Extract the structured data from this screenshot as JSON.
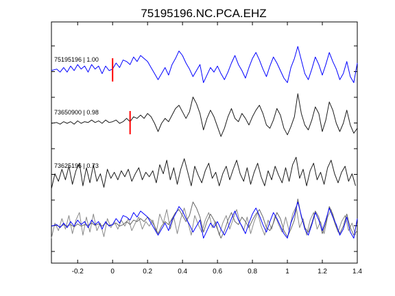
{
  "chart_data": {
    "type": "line",
    "title": "75195196.NC.PCA.EHZ",
    "xlabel": "",
    "ylabel": "",
    "xlim": [
      -0.35,
      1.4
    ],
    "x_ticks": [
      -0.2,
      0,
      0.2,
      0.4,
      0.6,
      0.8,
      1,
      1.2,
      1.4
    ],
    "x_tick_labels": [
      "-0.2",
      "0",
      "0.2",
      "0.4",
      "0.6",
      "0.8",
      "1",
      "1.2",
      "1.4"
    ],
    "y_tick_count": 10,
    "grid": false,
    "traces": [
      {
        "label": "75195196 | 1.00",
        "color": "#0000ff",
        "pick_time": 0.0,
        "pick_color": "#ff0000",
        "x": [
          -0.35,
          -0.32,
          -0.3,
          -0.28,
          -0.26,
          -0.24,
          -0.22,
          -0.2,
          -0.18,
          -0.16,
          -0.14,
          -0.12,
          -0.1,
          -0.08,
          -0.06,
          -0.04,
          -0.02,
          0.0,
          0.02,
          0.04,
          0.06,
          0.08,
          0.1,
          0.12,
          0.14,
          0.16,
          0.18,
          0.2,
          0.22,
          0.24,
          0.26,
          0.28,
          0.3,
          0.32,
          0.34,
          0.36,
          0.38,
          0.4,
          0.42,
          0.44,
          0.46,
          0.48,
          0.5,
          0.52,
          0.54,
          0.56,
          0.58,
          0.6,
          0.62,
          0.64,
          0.66,
          0.68,
          0.7,
          0.72,
          0.74,
          0.76,
          0.78,
          0.8,
          0.82,
          0.84,
          0.86,
          0.88,
          0.9,
          0.92,
          0.94,
          0.96,
          0.98,
          1.0,
          1.02,
          1.04,
          1.06,
          1.08,
          1.1,
          1.12,
          1.14,
          1.16,
          1.18,
          1.2,
          1.22,
          1.24,
          1.26,
          1.28,
          1.3,
          1.32,
          1.34,
          1.36,
          1.38,
          1.4
        ],
        "y": [
          0.0,
          0.1,
          -0.1,
          0.2,
          -0.1,
          0.3,
          0.0,
          0.4,
          0.1,
          0.3,
          -0.1,
          0.4,
          0.1,
          0.3,
          -0.2,
          0.3,
          0.0,
          0.1,
          0.5,
          0.2,
          0.7,
          0.6,
          0.4,
          0.9,
          0.6,
          1.0,
          0.8,
          0.6,
          0.2,
          -0.2,
          -0.6,
          -0.2,
          0.2,
          -0.3,
          0.4,
          0.8,
          1.3,
          1.0,
          0.5,
          0.1,
          -0.4,
          0.0,
          0.4,
          -0.8,
          -0.3,
          0.2,
          -0.1,
          0.3,
          -0.2,
          -0.6,
          -0.1,
          0.5,
          1.0,
          0.4,
          0.0,
          -0.5,
          0.2,
          0.8,
          1.2,
          0.7,
          0.1,
          -0.4,
          0.3,
          0.9,
          0.5,
          0.0,
          -0.5,
          -0.8,
          0.2,
          0.8,
          1.6,
          0.7,
          -0.2,
          -0.6,
          0.1,
          0.9,
          0.4,
          -0.3,
          0.4,
          1.2,
          0.6,
          0.1,
          -0.6,
          -0.2,
          0.6,
          -0.4,
          -0.8,
          0.5
        ]
      },
      {
        "label": "73650900 | 0.98",
        "color": "#1a1a1a",
        "pick_time": 0.1,
        "pick_color": "#ff0000",
        "x": [
          -0.35,
          -0.32,
          -0.3,
          -0.28,
          -0.26,
          -0.24,
          -0.22,
          -0.2,
          -0.18,
          -0.16,
          -0.14,
          -0.12,
          -0.1,
          -0.08,
          -0.06,
          -0.04,
          -0.02,
          0.0,
          0.02,
          0.04,
          0.06,
          0.08,
          0.1,
          0.12,
          0.14,
          0.16,
          0.18,
          0.2,
          0.22,
          0.24,
          0.26,
          0.28,
          0.3,
          0.32,
          0.34,
          0.36,
          0.38,
          0.4,
          0.42,
          0.44,
          0.46,
          0.48,
          0.5,
          0.52,
          0.54,
          0.56,
          0.58,
          0.6,
          0.62,
          0.64,
          0.66,
          0.68,
          0.7,
          0.72,
          0.74,
          0.76,
          0.78,
          0.8,
          0.82,
          0.84,
          0.86,
          0.88,
          0.9,
          0.92,
          0.94,
          0.96,
          0.98,
          1.0,
          1.02,
          1.04,
          1.06,
          1.08,
          1.1,
          1.12,
          1.14,
          1.16,
          1.18,
          1.2,
          1.22,
          1.24,
          1.26,
          1.28,
          1.3,
          1.32,
          1.34,
          1.36,
          1.38,
          1.4
        ],
        "y": [
          0.0,
          0.05,
          -0.05,
          0.1,
          0.0,
          0.1,
          -0.05,
          0.15,
          0.0,
          0.1,
          0.05,
          0.2,
          0.05,
          0.15,
          0.0,
          0.2,
          0.05,
          0.1,
          0.2,
          0.0,
          0.1,
          0.3,
          0.1,
          0.4,
          0.3,
          0.5,
          0.3,
          0.6,
          0.4,
          0.0,
          -0.5,
          0.0,
          0.3,
          0.1,
          0.5,
          0.9,
          1.1,
          0.7,
          0.3,
          0.7,
          1.6,
          1.2,
          0.6,
          -0.4,
          0.3,
          0.8,
          0.4,
          -0.2,
          -0.8,
          -0.3,
          0.4,
          0.9,
          0.3,
          0.1,
          0.6,
          0.3,
          -0.1,
          0.4,
          0.8,
          1.1,
          0.6,
          -0.1,
          -0.3,
          0.2,
          0.9,
          0.5,
          -0.3,
          -0.7,
          -0.2,
          0.4,
          1.8,
          0.6,
          -0.1,
          -0.4,
          0.2,
          1.0,
          0.6,
          -0.5,
          0.2,
          1.3,
          0.8,
          0.0,
          -0.5,
          0.0,
          0.8,
          -0.1,
          -0.6,
          -0.3
        ]
      },
      {
        "label": "73625196 | 0.73",
        "color": "#1a1a1a",
        "x": [
          -0.35,
          -0.33,
          -0.31,
          -0.29,
          -0.27,
          -0.25,
          -0.23,
          -0.21,
          -0.19,
          -0.17,
          -0.15,
          -0.13,
          -0.11,
          -0.09,
          -0.07,
          -0.05,
          -0.03,
          -0.01,
          0.01,
          0.03,
          0.05,
          0.07,
          0.09,
          0.11,
          0.13,
          0.15,
          0.17,
          0.19,
          0.21,
          0.23,
          0.25,
          0.27,
          0.29,
          0.31,
          0.33,
          0.35,
          0.37,
          0.39,
          0.41,
          0.43,
          0.45,
          0.47,
          0.49,
          0.51,
          0.53,
          0.55,
          0.57,
          0.59,
          0.61,
          0.63,
          0.65,
          0.67,
          0.69,
          0.71,
          0.73,
          0.75,
          0.77,
          0.79,
          0.81,
          0.83,
          0.85,
          0.87,
          0.89,
          0.91,
          0.93,
          0.95,
          0.97,
          0.99,
          1.01,
          1.03,
          1.05,
          1.07,
          1.09,
          1.11,
          1.13,
          1.15,
          1.17,
          1.19,
          1.21,
          1.23,
          1.25,
          1.27,
          1.29,
          1.31,
          1.33,
          1.35,
          1.37,
          1.39
        ],
        "y": [
          -0.8,
          0.2,
          -0.3,
          0.5,
          -0.2,
          0.7,
          -0.5,
          0.4,
          0.9,
          -0.6,
          0.6,
          -0.4,
          0.8,
          -0.3,
          0.2,
          -0.7,
          0.5,
          -0.1,
          0.3,
          -0.2,
          0.4,
          0.0,
          0.5,
          -0.3,
          0.2,
          0.6,
          -0.2,
          0.3,
          0.0,
          0.4,
          -0.4,
          0.8,
          0.2,
          1.1,
          -0.2,
          0.6,
          -0.5,
          0.5,
          1.2,
          0.3,
          -0.6,
          0.7,
          0.1,
          -0.4,
          0.4,
          0.9,
          -0.1,
          0.3,
          -0.6,
          0.2,
          0.7,
          -0.2,
          0.5,
          1.1,
          0.2,
          -0.3,
          0.6,
          -0.5,
          0.3,
          0.9,
          0.0,
          -0.6,
          0.4,
          -0.2,
          0.7,
          0.1,
          -0.4,
          0.6,
          -0.3,
          0.8,
          1.3,
          -0.1,
          0.5,
          -0.6,
          0.4,
          0.9,
          -0.2,
          0.3,
          -0.5,
          0.6,
          1.1,
          0.2,
          -0.4,
          0.3,
          0.7,
          -0.3,
          0.2,
          -0.6
        ]
      }
    ]
  }
}
